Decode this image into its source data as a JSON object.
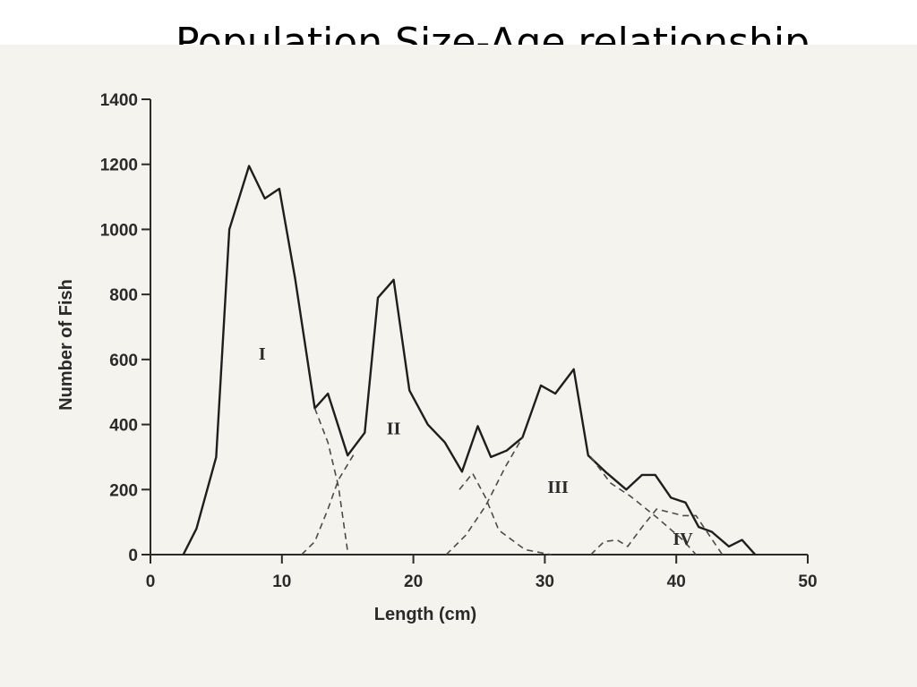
{
  "slide": {
    "title": "Population Size-Age relationship"
  },
  "chart_data": {
    "type": "line",
    "title": "",
    "xlabel": "Length (cm)",
    "ylabel": "Number of Fish",
    "xlim": [
      0,
      50
    ],
    "ylim": [
      0,
      1400
    ],
    "xticks": [
      0,
      10,
      20,
      30,
      40,
      50
    ],
    "yticks": [
      0,
      200,
      400,
      600,
      800,
      1000,
      1200,
      1400
    ],
    "grid": false,
    "series": [
      {
        "style": "solid",
        "points": [
          [
            2.5,
            0
          ],
          [
            3.5,
            80
          ],
          [
            5,
            300
          ],
          [
            6,
            1000
          ],
          [
            7.5,
            1195
          ],
          [
            8.7,
            1095
          ],
          [
            9.8,
            1125
          ],
          [
            11,
            850
          ],
          [
            12.5,
            450
          ],
          [
            13.5,
            495
          ],
          [
            15,
            305
          ],
          [
            16.3,
            375
          ],
          [
            17.3,
            790
          ],
          [
            18.5,
            845
          ],
          [
            19.7,
            505
          ],
          [
            21.1,
            400
          ],
          [
            22.4,
            345
          ],
          [
            23.7,
            255
          ],
          [
            24.9,
            395
          ],
          [
            25.9,
            300
          ],
          [
            27.1,
            320
          ],
          [
            28.3,
            360
          ],
          [
            29.7,
            520
          ],
          [
            30.8,
            495
          ],
          [
            32.2,
            570
          ],
          [
            33.3,
            305
          ],
          [
            34.6,
            255
          ],
          [
            36.2,
            200
          ],
          [
            37.4,
            245
          ],
          [
            38.4,
            245
          ],
          [
            39.6,
            175
          ],
          [
            40.7,
            160
          ],
          [
            41.7,
            85
          ],
          [
            42.7,
            70
          ],
          [
            44,
            25
          ],
          [
            45,
            45
          ],
          [
            46,
            0
          ]
        ]
      },
      {
        "style": "dashed",
        "points": [
          [
            12.5,
            450
          ],
          [
            13.5,
            345
          ],
          [
            14.3,
            210
          ],
          [
            15,
            10
          ]
        ]
      },
      {
        "style": "dashed",
        "points": [
          [
            11.5,
            0
          ],
          [
            12.5,
            40
          ],
          [
            13.5,
            140
          ],
          [
            14.3,
            230
          ],
          [
            15.5,
            310
          ]
        ]
      },
      {
        "style": "dashed",
        "points": [
          [
            23.5,
            200
          ],
          [
            24.5,
            250
          ],
          [
            25.5,
            175
          ],
          [
            26.5,
            75
          ],
          [
            28.5,
            15
          ],
          [
            30.5,
            0
          ]
        ]
      },
      {
        "style": "dashed",
        "points": [
          [
            22.5,
            0
          ],
          [
            24,
            60
          ],
          [
            25.5,
            150
          ],
          [
            27,
            270
          ],
          [
            28.3,
            360
          ]
        ]
      },
      {
        "style": "dashed",
        "points": [
          [
            33.5,
            300
          ],
          [
            35,
            220
          ],
          [
            36.5,
            180
          ],
          [
            38.5,
            115
          ],
          [
            40.5,
            45
          ],
          [
            41.5,
            0
          ]
        ]
      },
      {
        "style": "dashed",
        "points": [
          [
            33.5,
            0
          ],
          [
            34.5,
            40
          ],
          [
            35.5,
            45
          ],
          [
            36.3,
            25
          ],
          [
            37.5,
            90
          ],
          [
            38.5,
            140
          ],
          [
            39.5,
            130
          ],
          [
            40.5,
            120
          ],
          [
            41.5,
            120
          ],
          [
            42.5,
            60
          ],
          [
            43.5,
            0
          ]
        ]
      }
    ],
    "annotations": [
      {
        "text": "I",
        "x": 8.5,
        "y": 600
      },
      {
        "text": "II",
        "x": 18.5,
        "y": 370
      },
      {
        "text": "III",
        "x": 31,
        "y": 190
      },
      {
        "text": "IV",
        "x": 40.5,
        "y": 30
      }
    ]
  }
}
